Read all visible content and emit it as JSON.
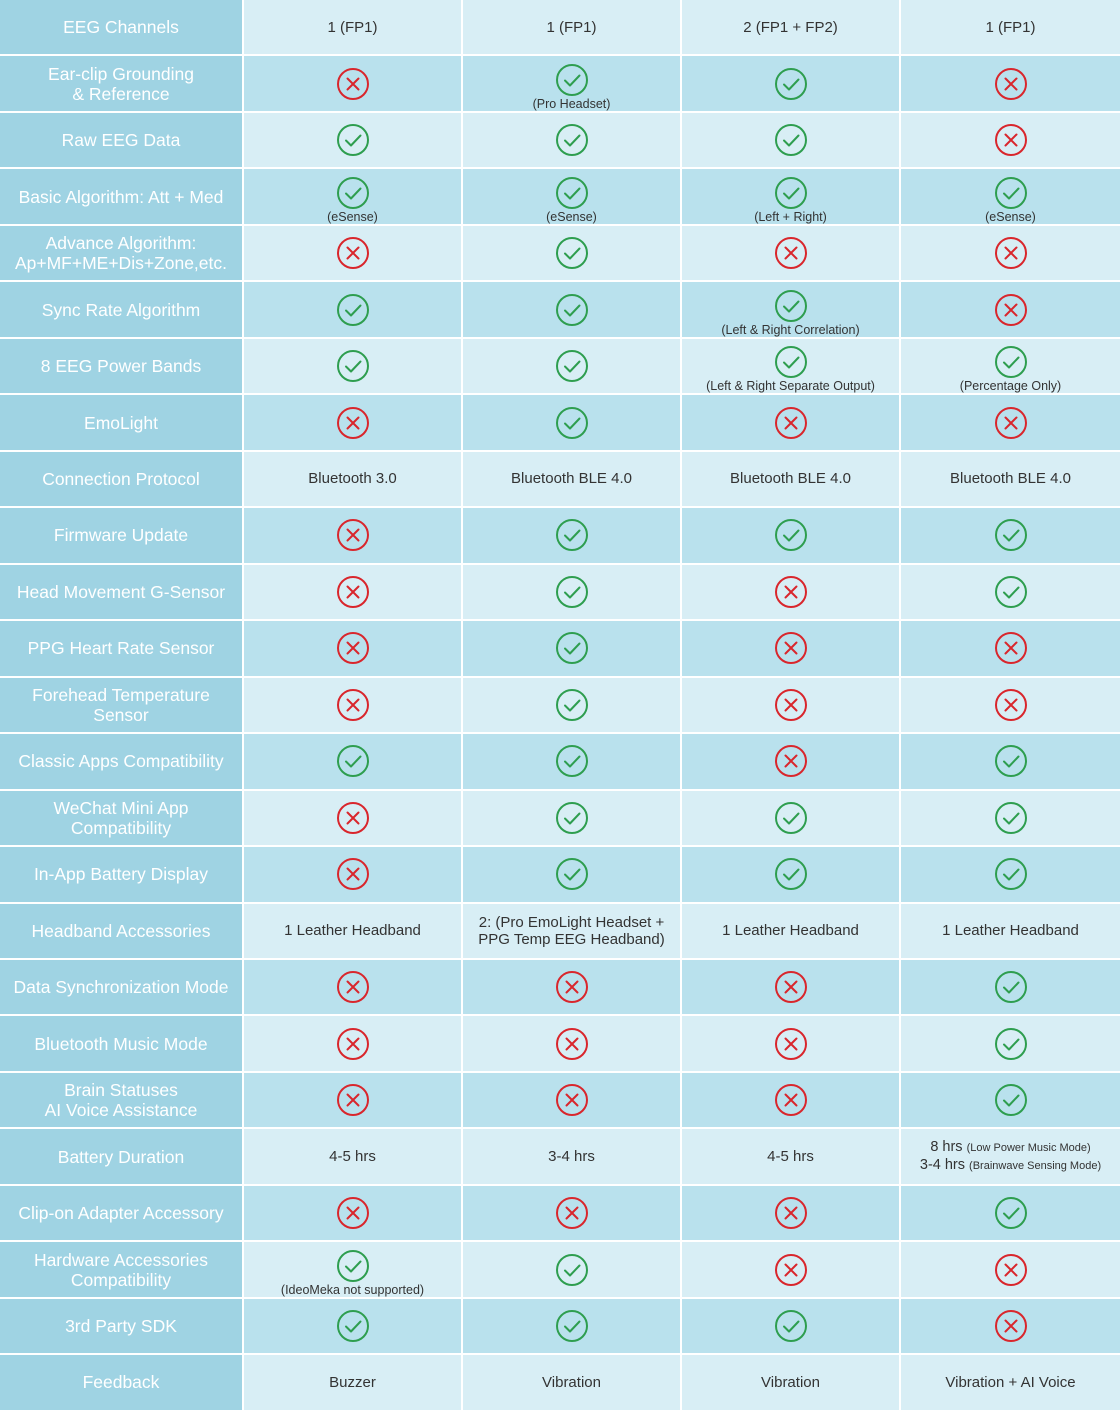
{
  "colors": {
    "label_bg": "#9fd3e3",
    "row_light": "#d8eef5",
    "row_dark": "#b9e1ed",
    "check_green": "#2e9e4f",
    "cross_red": "#d9262c"
  },
  "rows": [
    {
      "label": "EEG Channels",
      "cells": [
        {
          "type": "text",
          "text": "1 (FP1)"
        },
        {
          "type": "text",
          "text": "1 (FP1)"
        },
        {
          "type": "text",
          "text": "2 (FP1 + FP2)"
        },
        {
          "type": "text",
          "text": "1 (FP1)"
        }
      ]
    },
    {
      "label": "Ear-clip Grounding\n& Reference",
      "cells": [
        {
          "type": "cross"
        },
        {
          "type": "check",
          "note": "(Pro Headset)"
        },
        {
          "type": "check"
        },
        {
          "type": "cross"
        }
      ]
    },
    {
      "label": "Raw EEG Data",
      "cells": [
        {
          "type": "check"
        },
        {
          "type": "check"
        },
        {
          "type": "check"
        },
        {
          "type": "cross"
        }
      ]
    },
    {
      "label": "Basic Algorithm: Att + Med",
      "cells": [
        {
          "type": "check",
          "note": "(eSense)"
        },
        {
          "type": "check",
          "note": "(eSense)"
        },
        {
          "type": "check",
          "note": "(Left + Right)"
        },
        {
          "type": "check",
          "note": "(eSense)"
        }
      ]
    },
    {
      "label": "Advance Algorithm:\nAp+MF+ME+Dis+Zone,etc.",
      "cells": [
        {
          "type": "cross"
        },
        {
          "type": "check"
        },
        {
          "type": "cross"
        },
        {
          "type": "cross"
        }
      ]
    },
    {
      "label": "Sync Rate Algorithm",
      "cells": [
        {
          "type": "check"
        },
        {
          "type": "check"
        },
        {
          "type": "check",
          "note": "(Left & Right Correlation)"
        },
        {
          "type": "cross"
        }
      ]
    },
    {
      "label": "8 EEG Power Bands",
      "cells": [
        {
          "type": "check"
        },
        {
          "type": "check"
        },
        {
          "type": "check",
          "note": "(Left & Right Separate Output)"
        },
        {
          "type": "check",
          "note": "(Percentage Only)"
        }
      ]
    },
    {
      "label": "EmoLight",
      "cells": [
        {
          "type": "cross"
        },
        {
          "type": "check"
        },
        {
          "type": "cross"
        },
        {
          "type": "cross"
        }
      ]
    },
    {
      "label": "Connection Protocol",
      "cells": [
        {
          "type": "text",
          "text": "Bluetooth 3.0"
        },
        {
          "type": "text",
          "text": "Bluetooth BLE 4.0"
        },
        {
          "type": "text",
          "text": "Bluetooth BLE 4.0"
        },
        {
          "type": "text",
          "text": "Bluetooth BLE 4.0"
        }
      ]
    },
    {
      "label": "Firmware Update",
      "cells": [
        {
          "type": "cross"
        },
        {
          "type": "check"
        },
        {
          "type": "check"
        },
        {
          "type": "check"
        }
      ]
    },
    {
      "label": "Head Movement G-Sensor",
      "cells": [
        {
          "type": "cross"
        },
        {
          "type": "check"
        },
        {
          "type": "cross"
        },
        {
          "type": "check"
        }
      ]
    },
    {
      "label": "PPG Heart Rate Sensor",
      "cells": [
        {
          "type": "cross"
        },
        {
          "type": "check"
        },
        {
          "type": "cross"
        },
        {
          "type": "cross"
        }
      ]
    },
    {
      "label": "Forehead Temperature\nSensor",
      "cells": [
        {
          "type": "cross"
        },
        {
          "type": "check"
        },
        {
          "type": "cross"
        },
        {
          "type": "cross"
        }
      ]
    },
    {
      "label": "Classic Apps Compatibility",
      "cells": [
        {
          "type": "check"
        },
        {
          "type": "check"
        },
        {
          "type": "cross"
        },
        {
          "type": "check"
        }
      ]
    },
    {
      "label": "WeChat Mini App\nCompatibility",
      "cells": [
        {
          "type": "cross"
        },
        {
          "type": "check"
        },
        {
          "type": "check"
        },
        {
          "type": "check"
        }
      ]
    },
    {
      "label": "In-App Battery Display",
      "cells": [
        {
          "type": "cross"
        },
        {
          "type": "check"
        },
        {
          "type": "check"
        },
        {
          "type": "check"
        }
      ]
    },
    {
      "label": "Headband Accessories",
      "cells": [
        {
          "type": "text",
          "text": "1 Leather Headband"
        },
        {
          "type": "text",
          "text": "2: (Pro EmoLight Headset +\nPPG Temp EEG Headband)"
        },
        {
          "type": "text",
          "text": "1 Leather Headband"
        },
        {
          "type": "text",
          "text": "1 Leather Headband"
        }
      ]
    },
    {
      "label": "Data Synchronization Mode",
      "cells": [
        {
          "type": "cross"
        },
        {
          "type": "cross"
        },
        {
          "type": "cross"
        },
        {
          "type": "check"
        }
      ]
    },
    {
      "label": "Bluetooth Music Mode",
      "cells": [
        {
          "type": "cross"
        },
        {
          "type": "cross"
        },
        {
          "type": "cross"
        },
        {
          "type": "check"
        }
      ]
    },
    {
      "label": "Brain Statuses\nAI Voice Assistance",
      "cells": [
        {
          "type": "cross"
        },
        {
          "type": "cross"
        },
        {
          "type": "cross"
        },
        {
          "type": "check"
        }
      ]
    },
    {
      "label": "Battery Duration",
      "cells": [
        {
          "type": "text",
          "text": "4-5 hrs"
        },
        {
          "type": "text",
          "text": "3-4 hrs"
        },
        {
          "type": "text",
          "text": "4-5 hrs"
        },
        {
          "type": "battery",
          "lines": [
            {
              "main": "8 hrs",
              "small": "(Low Power Music Mode)"
            },
            {
              "main": "3-4 hrs",
              "small": "(Brainwave Sensing Mode)"
            }
          ]
        }
      ]
    },
    {
      "label": "Clip-on Adapter Accessory",
      "cells": [
        {
          "type": "cross"
        },
        {
          "type": "cross"
        },
        {
          "type": "cross"
        },
        {
          "type": "check"
        }
      ]
    },
    {
      "label": "Hardware Accessories\nCompatibility",
      "cells": [
        {
          "type": "check",
          "note": "(IdeoMeka not supported)"
        },
        {
          "type": "check"
        },
        {
          "type": "cross"
        },
        {
          "type": "cross"
        }
      ]
    },
    {
      "label": "3rd Party SDK",
      "cells": [
        {
          "type": "check"
        },
        {
          "type": "check"
        },
        {
          "type": "check"
        },
        {
          "type": "cross"
        }
      ]
    },
    {
      "label": "Feedback",
      "cells": [
        {
          "type": "text",
          "text": "Buzzer"
        },
        {
          "type": "text",
          "text": "Vibration"
        },
        {
          "type": "text",
          "text": "Vibration"
        },
        {
          "type": "text",
          "text": "Vibration + AI Voice"
        }
      ]
    }
  ]
}
